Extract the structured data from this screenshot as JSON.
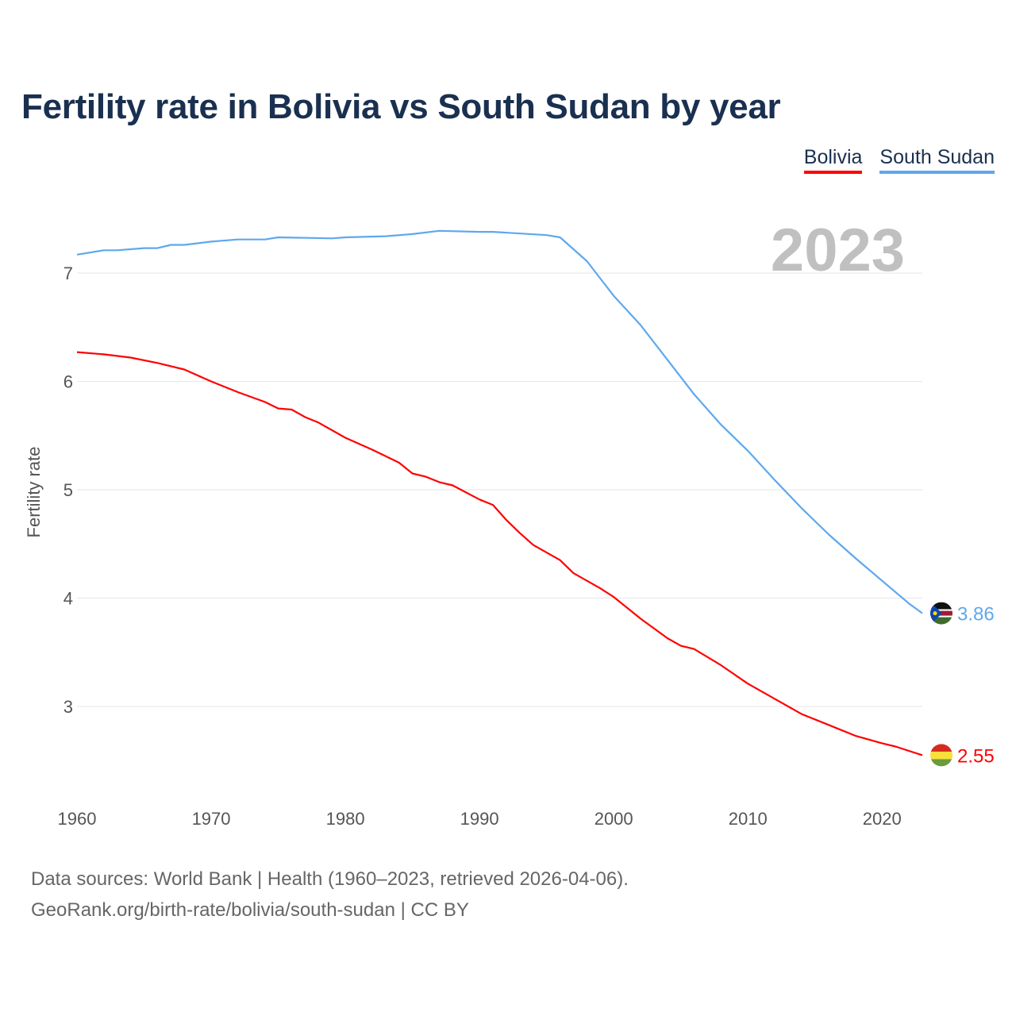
{
  "title": "Fertility rate in Bolivia vs South Sudan by year",
  "current_year": "2023",
  "footer": {
    "line1": "Data sources: World Bank | Health (1960–2023, retrieved 2026-04-06).",
    "line2": "GeoRank.org/birth-rate/bolivia/south-sudan | CC BY"
  },
  "chart_data": {
    "type": "line",
    "title": "Fertility rate in Bolivia vs South Sudan by year",
    "xlabel": "",
    "ylabel": "Fertility rate",
    "xlim": [
      1960,
      2023
    ],
    "ylim": [
      2.3,
      7.5
    ],
    "x_ticks": [
      "1960",
      "1970",
      "1980",
      "1990",
      "2000",
      "2010",
      "2020"
    ],
    "y_ticks": [
      "3",
      "4",
      "5",
      "6",
      "7"
    ],
    "grid": true,
    "legend_position": "top-right",
    "series": [
      {
        "name": "Bolivia",
        "color": "#ff0000",
        "end_label": "2.55",
        "flag": "bolivia-flag",
        "x": [
          1960,
          1962,
          1964,
          1966,
          1968,
          1970,
          1972,
          1974,
          1975,
          1976,
          1977,
          1978,
          1980,
          1982,
          1984,
          1985,
          1986,
          1987,
          1988,
          1990,
          1991,
          1992,
          1993,
          1994,
          1996,
          1997,
          1999,
          2000,
          2002,
          2004,
          2005,
          2006,
          2008,
          2010,
          2012,
          2014,
          2016,
          2018,
          2020,
          2021,
          2022,
          2023
        ],
        "values": [
          6.27,
          6.25,
          6.22,
          6.17,
          6.11,
          6.0,
          5.9,
          5.81,
          5.75,
          5.74,
          5.67,
          5.62,
          5.48,
          5.37,
          5.25,
          5.15,
          5.12,
          5.07,
          5.04,
          4.91,
          4.86,
          4.72,
          4.6,
          4.49,
          4.35,
          4.23,
          4.09,
          4.01,
          3.81,
          3.63,
          3.56,
          3.53,
          3.38,
          3.21,
          3.07,
          2.93,
          2.83,
          2.73,
          2.66,
          2.63,
          2.59,
          2.55
        ]
      },
      {
        "name": "South Sudan",
        "color": "#5ea8ee",
        "end_label": "3.86",
        "flag": "south-sudan-flag",
        "x": [
          1960,
          1962,
          1963,
          1965,
          1966,
          1967,
          1968,
          1970,
          1972,
          1974,
          1975,
          1979,
          1980,
          1983,
          1985,
          1987,
          1990,
          1991,
          1995,
          1996,
          1998,
          2000,
          2002,
          2004,
          2006,
          2008,
          2010,
          2012,
          2014,
          2016,
          2018,
          2020,
          2022,
          2023
        ],
        "values": [
          7.17,
          7.21,
          7.21,
          7.23,
          7.23,
          7.26,
          7.26,
          7.29,
          7.31,
          7.31,
          7.33,
          7.32,
          7.33,
          7.34,
          7.36,
          7.39,
          7.38,
          7.38,
          7.35,
          7.33,
          7.11,
          6.79,
          6.52,
          6.2,
          5.88,
          5.6,
          5.36,
          5.09,
          4.83,
          4.59,
          4.37,
          4.16,
          3.95,
          3.86
        ]
      }
    ]
  }
}
